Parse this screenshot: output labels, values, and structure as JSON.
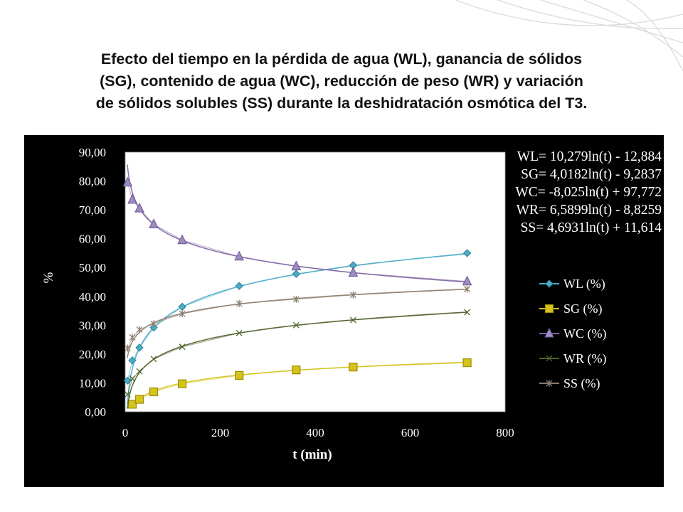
{
  "slide": {
    "title_lines": [
      "Efecto del tiempo en la pérdida de agua (WL), ganancia de sólidos",
      "(SG), contenido de agua (WC), reducción de peso (WR) y variación",
      "de sólidos solubles (SS) durante la deshidratación osmótica del T3."
    ]
  },
  "chart_data": {
    "type": "scatter",
    "title": "",
    "xlabel": "t (min)",
    "ylabel": "%",
    "xlim": [
      0,
      800
    ],
    "ylim": [
      0,
      90
    ],
    "x_ticks": [
      "0",
      "200",
      "400",
      "600",
      "800"
    ],
    "y_ticks": [
      "0,00",
      "10,00",
      "20,00",
      "30,00",
      "40,00",
      "50,00",
      "60,00",
      "70,00",
      "80,00",
      "90,00"
    ],
    "grid": false,
    "legend_position": "right",
    "equations": [
      "WL= 10,279ln(t) - 12,884",
      "SG= 4,0182ln(t) - 9,2837",
      "WC= -8,025ln(t) + 97,772",
      "WR= 6,5899ln(t) - 8,8259",
      "SS= 4,6931ln(t) + 11,614"
    ],
    "series": [
      {
        "name": "WL (%)",
        "color": "#4bacc6",
        "marker": "diamond",
        "x": [
          5,
          15,
          30,
          60,
          120,
          240,
          360,
          480,
          720
        ],
        "y": [
          10.8,
          17.8,
          22.2,
          29.2,
          36.4,
          43.6,
          47.8,
          50.8,
          55.0
        ],
        "trend": [
          10.279,
          -12.884
        ]
      },
      {
        "name": "SG (%)",
        "color": "#d4c31b",
        "marker": "square",
        "x": [
          15,
          30,
          60,
          120,
          240,
          360,
          480,
          720
        ],
        "y": [
          2.6,
          4.3,
          6.9,
          9.7,
          12.6,
          14.5,
          15.5,
          17.0
        ],
        "trend": [
          4.0182,
          -9.2837
        ]
      },
      {
        "name": "WC (%)",
        "color": "#8064a2",
        "marker": "triangle",
        "x": [
          5,
          15,
          30,
          60,
          120,
          240,
          360,
          480,
          720
        ],
        "y": [
          79.5,
          73.5,
          70.5,
          65.0,
          59.5,
          53.8,
          50.4,
          48.2,
          45.2
        ],
        "trend": [
          -8.025,
          97.772
        ]
      },
      {
        "name": "WR (%)",
        "color": "#4f6228",
        "marker": "x",
        "x": [
          5,
          15,
          30,
          60,
          120,
          240,
          360,
          480,
          720
        ],
        "y": [
          6.0,
          11.5,
          14.0,
          18.3,
          22.5,
          27.3,
          30.0,
          31.8,
          34.5
        ],
        "trend": [
          6.5899,
          -8.8259
        ]
      },
      {
        "name": "SS (%)",
        "color": "#8c7b6b",
        "marker": "star",
        "x": [
          5,
          15,
          30,
          60,
          120,
          240,
          360,
          480,
          720
        ],
        "y": [
          22.0,
          25.8,
          28.5,
          30.5,
          34.0,
          37.5,
          39.0,
          40.5,
          42.5
        ],
        "trend": [
          4.6931,
          11.614
        ]
      }
    ]
  }
}
